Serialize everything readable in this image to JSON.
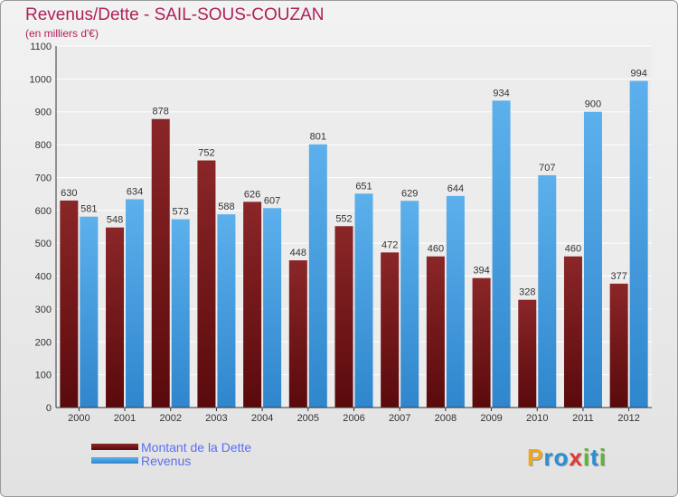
{
  "title": "Revenus/Dette - SAIL-SOUS-COUZAN",
  "subtitle": "(en milliers d'€)",
  "colors": {
    "dette": "#7a1618",
    "revenus": "#4aa2e2",
    "title": "#b0205a",
    "legend_text": "#5a6ff0"
  },
  "legend": {
    "dette": "Montant de la Dette",
    "revenus": "Revenus"
  },
  "logo": {
    "text": "Proxiti",
    "letters": [
      "P",
      "r",
      "o",
      "x",
      "i",
      "t",
      "i"
    ],
    "colors": [
      "#f2a71a",
      "#2a8fd6",
      "#2a8fd6",
      "#e03b3b",
      "#5cb82e",
      "#2a8fd6",
      "#5cb82e"
    ]
  },
  "chart_data": {
    "type": "bar",
    "title": "Revenus/Dette - SAIL-SOUS-COUZAN",
    "ylabel": "(en milliers d'€)",
    "xlabel": "",
    "ylim": [
      0,
      1100
    ],
    "yticks": [
      0,
      100,
      200,
      300,
      400,
      500,
      600,
      700,
      800,
      900,
      1000,
      1100
    ],
    "grid": true,
    "legend_position": "bottom-left",
    "categories": [
      "2000",
      "2001",
      "2002",
      "2003",
      "2004",
      "2005",
      "2006",
      "2007",
      "2008",
      "2009",
      "2010",
      "2011",
      "2012"
    ],
    "series": [
      {
        "name": "Montant de la Dette",
        "values": [
          630,
          548,
          878,
          752,
          626,
          448,
          552,
          472,
          460,
          394,
          328,
          460,
          377
        ]
      },
      {
        "name": "Revenus",
        "values": [
          581,
          634,
          573,
          588,
          607,
          801,
          651,
          629,
          644,
          934,
          707,
          900,
          994
        ]
      }
    ]
  }
}
